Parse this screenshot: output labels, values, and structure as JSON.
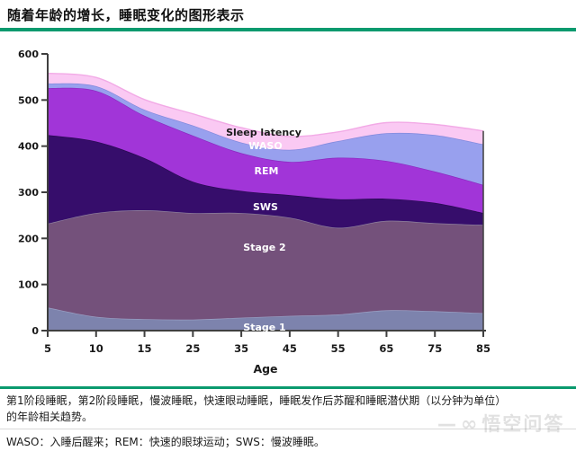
{
  "header": {
    "title": "随着年龄的增长，睡眠变化的图形表示"
  },
  "accent": {
    "green_rule": "#0a9a6e",
    "axis_color": "#3f3f3f",
    "divider": "#d9d9d9"
  },
  "chart_data": {
    "type": "area",
    "stacked": true,
    "x": [
      5,
      10,
      15,
      25,
      35,
      45,
      55,
      65,
      75,
      85
    ],
    "x_tick_labels": [
      "5",
      "10",
      "15",
      "25",
      "35",
      "45",
      "55",
      "65",
      "75",
      "85"
    ],
    "xlabel": "Age",
    "ylim": [
      0,
      600
    ],
    "yticks": [
      0,
      100,
      200,
      300,
      400,
      500,
      600
    ],
    "grid": false,
    "legend_position": "labels-inside-bands",
    "series": [
      {
        "name": "Stage 1",
        "values": [
          50,
          30,
          25,
          24,
          28,
          32,
          35,
          44,
          42,
          38
        ],
        "color": "#7d83ad",
        "edge": "#9aa0c4",
        "label_color": "#ffffff"
      },
      {
        "name": "Stage 2",
        "values": [
          182,
          225,
          236,
          231,
          227,
          213,
          188,
          194,
          191,
          191
        ],
        "color": "#74517b",
        "edge": "#8d7f9e",
        "label_color": "#ffffff"
      },
      {
        "name": "SWS",
        "values": [
          192,
          155,
          113,
          68,
          48,
          49,
          62,
          48,
          44,
          26
        ],
        "color": "#360d6b",
        "edge": "#2a0a54",
        "label_color": "#ffffff"
      },
      {
        "name": "REM",
        "values": [
          102,
          110,
          92,
          100,
          82,
          72,
          90,
          82,
          68,
          61
        ],
        "color": "#a135d8",
        "edge": "#8b2bc0",
        "label_color": "#ffffff"
      },
      {
        "name": "WASO",
        "values": [
          10,
          10,
          13,
          22,
          23,
          26,
          36,
          60,
          79,
          88
        ],
        "color": "#98a0ee",
        "edge": "#8289dd",
        "label_color": "#ffffff"
      },
      {
        "name": "Sleep latency",
        "values": [
          22,
          19,
          22,
          25,
          32,
          29,
          20,
          23,
          23,
          29
        ],
        "color": "#fac9f3",
        "edge": "#f2aae6",
        "label_color": "#1a1a1a"
      }
    ]
  },
  "caption": "第1阶段睡眠，第2阶段睡眠，慢波睡眠，快速眼动睡眠，睡眠发作后苏醒和睡眠潜伏期（以分钟为单位）的年龄相关趋势。",
  "footnote": "WASO：入睡后醒来；REM：快速的眼球运动；SWS：慢波睡眠。",
  "watermark": {
    "dash": "—",
    "glasses_icon": "∞",
    "text": "悟空问答"
  }
}
